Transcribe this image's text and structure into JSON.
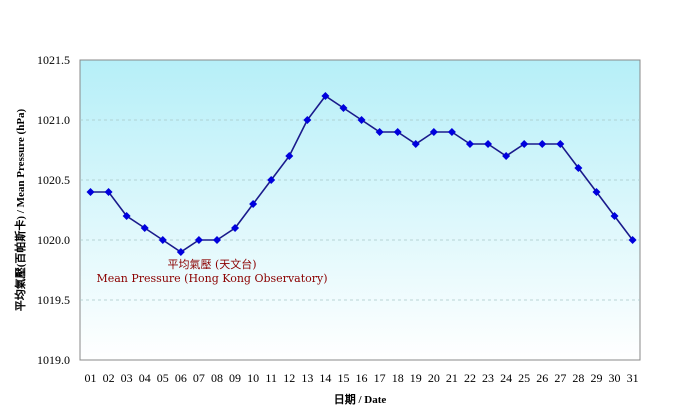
{
  "chart_data": {
    "type": "line",
    "title": "",
    "xlabel": "日期 / Date",
    "ylabel": "平均氣壓(百帕斯卡) / Mean Pressure (hPa)",
    "ylim": [
      1019.0,
      1021.5
    ],
    "yticks": [
      "1019.0",
      "1019.5",
      "1020.0",
      "1020.5",
      "1021.0",
      "1021.5"
    ],
    "grid": "horizontal dashed",
    "categories": [
      "01",
      "02",
      "03",
      "04",
      "05",
      "06",
      "07",
      "08",
      "09",
      "10",
      "11",
      "12",
      "13",
      "14",
      "15",
      "16",
      "17",
      "18",
      "19",
      "20",
      "21",
      "22",
      "23",
      "24",
      "25",
      "26",
      "27",
      "28",
      "29",
      "30",
      "31"
    ],
    "series": [
      {
        "name": "Mean Pressure (Hong Kong Observatory)",
        "values": [
          1020.4,
          1020.4,
          1020.2,
          1020.1,
          1020.0,
          1019.9,
          1020.0,
          1020.0,
          1020.1,
          1020.3,
          1020.5,
          1020.7,
          1021.0,
          1021.2,
          1021.1,
          1021.0,
          1020.9,
          1020.9,
          1020.8,
          1020.9,
          1020.9,
          1020.8,
          1020.8,
          1020.7,
          1020.8,
          1020.8,
          1020.8,
          1020.6,
          1020.4,
          1020.2,
          1020.0
        ],
        "color": "#0000cc",
        "marker": "diamond"
      }
    ],
    "annotation": {
      "line1": "平均氣壓 (天文台)",
      "line2": "Mean Pressure (Hong Kong Observatory)"
    },
    "colors": {
      "bg_top": "#b8f0f8",
      "bg_bottom": "#ffffff",
      "line": "#1a1a8c",
      "marker": "#0000dd",
      "annotation": "#8b0000"
    }
  }
}
